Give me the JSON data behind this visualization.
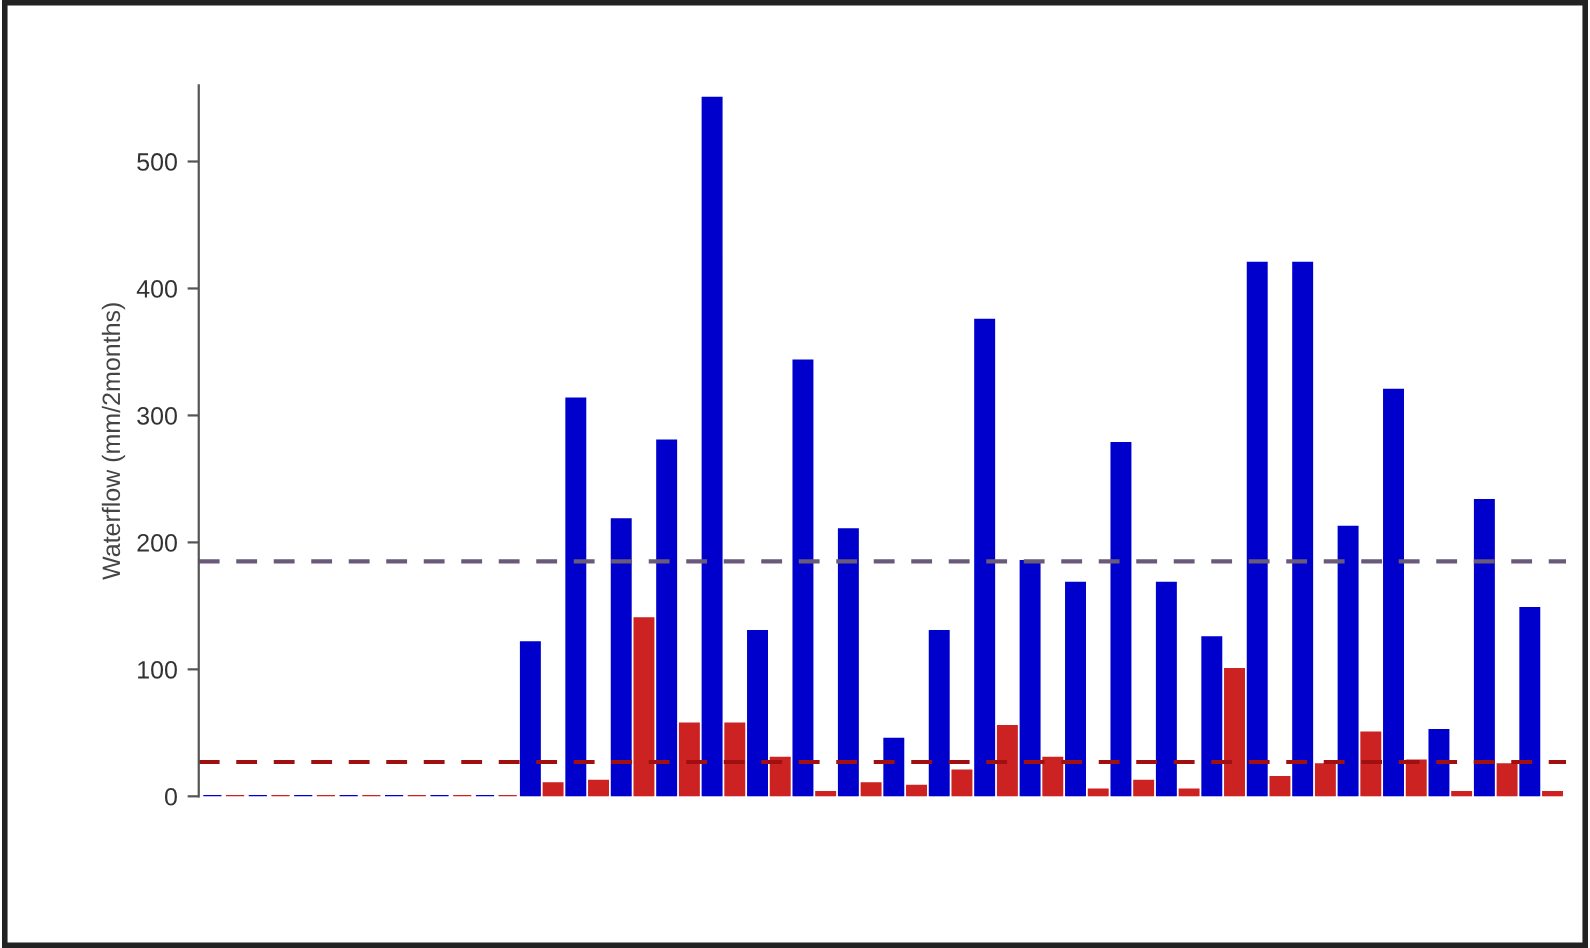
{
  "chart_data": {
    "type": "bar",
    "ylabel": "Waterflow (mm/2months)",
    "categories": [
      null,
      null,
      null,
      null,
      null,
      null,
      null,
      null,
      null,
      null,
      null,
      null,
      null,
      null,
      null,
      null,
      null,
      null,
      null,
      null,
      null,
      null,
      null,
      null,
      null,
      null,
      null,
      null,
      null,
      null,
      null,
      null,
      null,
      null,
      null,
      null,
      null,
      null,
      null,
      null,
      null,
      null,
      null,
      null,
      null,
      null,
      null,
      null,
      null,
      null,
      null,
      null,
      null,
      null,
      null,
      null,
      null,
      null,
      null,
      null
    ],
    "values": [
      0,
      0,
      0,
      0,
      0,
      0,
      0,
      0,
      0,
      0,
      0,
      0,
      0,
      0,
      121,
      10,
      313,
      12,
      218,
      140,
      280,
      57,
      550,
      57,
      130,
      30,
      343,
      3,
      210,
      10,
      45,
      8,
      130,
      20,
      375,
      55,
      185,
      30,
      168,
      5,
      278,
      12,
      168,
      5,
      125,
      100,
      420,
      15,
      420,
      25,
      212,
      50,
      320,
      28,
      52,
      3,
      233,
      25,
      148,
      3
    ],
    "colors": [
      "#0000cc",
      "#cc2222",
      "#0000cc",
      "#cc2222",
      "#0000cc",
      "#cc2222",
      "#0000cc",
      "#cc2222",
      "#0000cc",
      "#cc2222",
      "#0000cc",
      "#cc2222",
      "#0000cc",
      "#cc2222",
      "#0000cc",
      "#cc2222",
      "#0000cc",
      "#cc2222",
      "#0000cc",
      "#cc2222",
      "#0000cc",
      "#cc2222",
      "#0000cc",
      "#cc2222",
      "#0000cc",
      "#cc2222",
      "#0000cc",
      "#cc2222",
      "#0000cc",
      "#cc2222",
      "#0000cc",
      "#cc2222",
      "#0000cc",
      "#cc2222",
      "#0000cc",
      "#cc2222",
      "#0000cc",
      "#cc2222",
      "#0000cc",
      "#cc2222",
      "#0000cc",
      "#cc2222",
      "#0000cc",
      "#cc2222",
      "#0000cc",
      "#cc2222",
      "#0000cc",
      "#cc2222",
      "#0000cc",
      "#cc2222",
      "#0000cc",
      "#cc2222",
      "#0000cc",
      "#cc2222",
      "#0000cc",
      "#cc2222",
      "#0000cc",
      "#cc2222",
      "#0000cc",
      "#cc2222"
    ],
    "ylim": [
      0,
      560
    ],
    "yticks": [
      0,
      100,
      200,
      300,
      400,
      500
    ],
    "ref_lines": [
      {
        "axis": "y",
        "value": 185,
        "color": "#6a5a7a",
        "line_style": "dashed"
      },
      {
        "axis": "y",
        "value": 27,
        "color": "#a01010",
        "line_style": "dashed"
      }
    ],
    "grid": false
  }
}
